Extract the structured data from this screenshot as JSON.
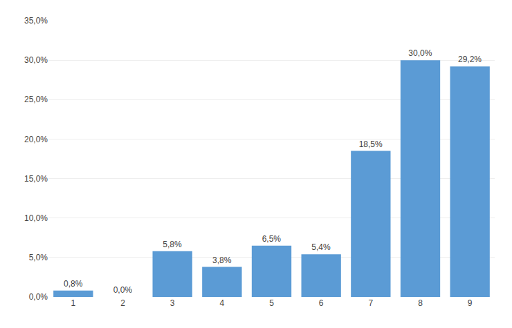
{
  "chart_data": {
    "type": "bar",
    "categories": [
      "1",
      "2",
      "3",
      "4",
      "5",
      "6",
      "7",
      "8",
      "9"
    ],
    "values": [
      0.8,
      0.0,
      5.8,
      3.8,
      6.5,
      5.4,
      18.5,
      30.0,
      29.2
    ],
    "value_labels": [
      "0,8%",
      "0,0%",
      "5,8%",
      "3,8%",
      "6,5%",
      "5,4%",
      "18,5%",
      "30,0%",
      "29,2%"
    ],
    "data_labels": true,
    "color": "#5B9BD5",
    "ylim": [
      0,
      35
    ],
    "yticks": [
      {
        "value": 0,
        "label": "0,0%"
      },
      {
        "value": 5,
        "label": "5,0%"
      },
      {
        "value": 10,
        "label": "10,0%"
      },
      {
        "value": 15,
        "label": "15,0%"
      },
      {
        "value": 20,
        "label": "20,0%"
      },
      {
        "value": 25,
        "label": "25,0%"
      },
      {
        "value": 30,
        "label": "30,0%"
      },
      {
        "value": 35,
        "label": "35,0%"
      }
    ],
    "grid": true
  }
}
